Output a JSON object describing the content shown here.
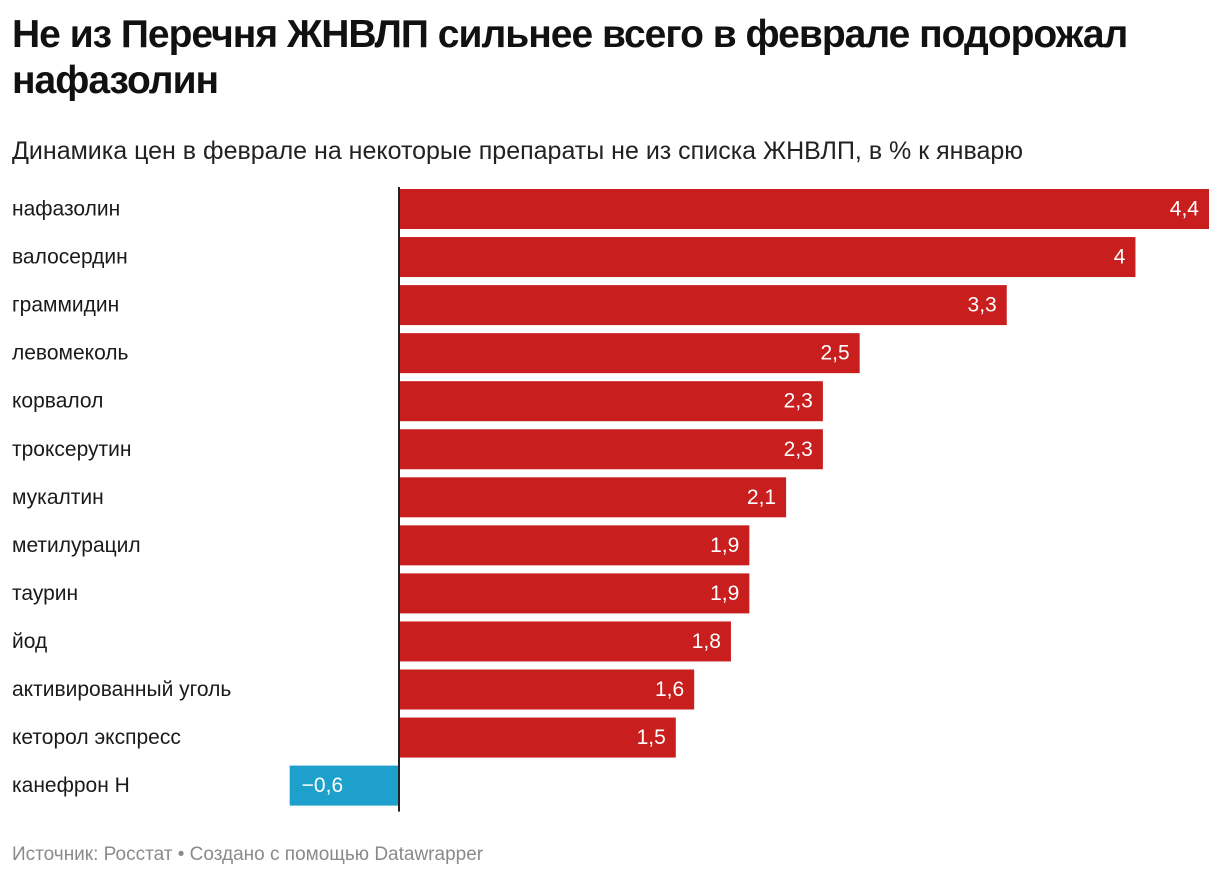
{
  "header": {
    "title": "Не из Перечня ЖНВЛП сильнее всего в феврале подорожал нафазолин",
    "subtitle": "Динамика цен в феврале на некоторые препараты не из списка ЖНВЛП, в % к январю"
  },
  "footer": {
    "source": "Источник: Росстат",
    "separator": " • ",
    "credit": "Создано с помощью Datawrapper"
  },
  "colors": {
    "positive": "#c81e1e",
    "negative": "#1ea0cc",
    "axis": "#222222",
    "label": "#1a1a1a",
    "value_text": "#ffffff"
  },
  "chart_data": {
    "type": "bar",
    "orientation": "horizontal",
    "title": "Не из Перечня ЖНВЛП сильнее всего в феврале подорожал нафазолин",
    "subtitle": "Динамика цен в феврале на некоторые препараты не из списка ЖНВЛП, в % к январю",
    "xlim": [
      -0.6,
      4.4
    ],
    "grid": false,
    "legend": "none",
    "categories": [
      "нафазолин",
      "валосердин",
      "граммидин",
      "левомеколь",
      "корвалол",
      "троксерутин",
      "мукалтин",
      "метилурацил",
      "таурин",
      "йод",
      "активированный уголь",
      "кеторол экспресс",
      "канефрон Н"
    ],
    "values": [
      4.4,
      4,
      3.3,
      2.5,
      2.3,
      2.3,
      2.1,
      1.9,
      1.9,
      1.8,
      1.6,
      1.5,
      -0.6
    ],
    "value_labels": [
      "4,4",
      "4",
      "3,3",
      "2,5",
      "2,3",
      "2,3",
      "2,1",
      "1,9",
      "1,9",
      "1,8",
      "1,6",
      "1,5",
      "−0,6"
    ]
  }
}
